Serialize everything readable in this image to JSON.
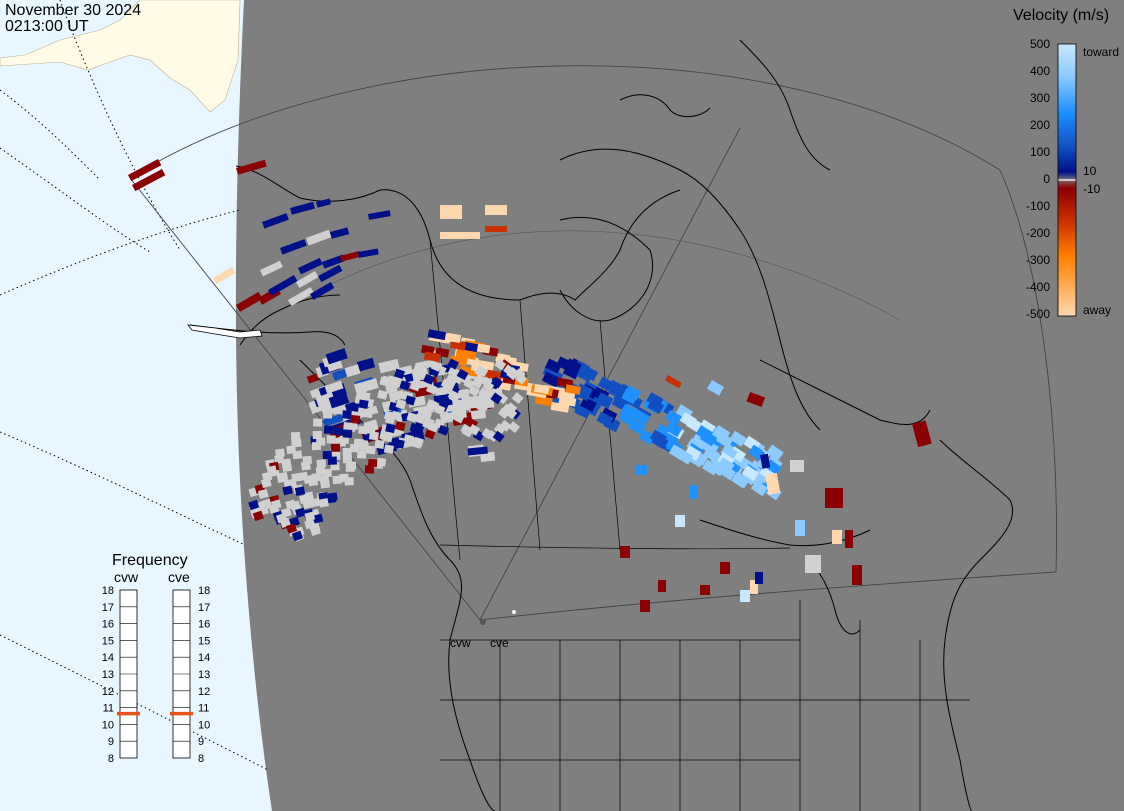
{
  "header": {
    "date": "November 30 2024",
    "time": "0213:00 UT"
  },
  "legend": {
    "title": "Velocity (m/s)",
    "ticks": [
      "500",
      "400",
      "300",
      "200",
      "100",
      "10",
      "0",
      "-10",
      "-100",
      "-200",
      "-300",
      "-400",
      "-500"
    ],
    "toward_label": "toward",
    "away_label": "away",
    "colors": {
      "toward_light": "#c8e8ff",
      "toward_mid": "#1e90ff",
      "toward_dark": "#00108a",
      "near_zero": "#ffffff",
      "away_dark": "#8b0000",
      "away_mid": "#ff8000",
      "away_light": "#ffd8b0"
    }
  },
  "frequency_panel": {
    "title": "Frequency",
    "radars": [
      {
        "name": "cvw",
        "selected": "11"
      },
      {
        "name": "cve",
        "selected": "11"
      }
    ],
    "scale": [
      "18",
      "17",
      "16",
      "15",
      "14",
      "13",
      "12",
      "11",
      "10",
      "9",
      "8"
    ]
  },
  "stations": [
    {
      "name": "cvw"
    },
    {
      "name": "cve"
    }
  ],
  "map_colors": {
    "ocean": "#e8f6ff",
    "land_outside": "#fffbe6",
    "coverage_area": "#7f7f7f",
    "coastline": "#000000",
    "ground_scatter": "#d0d0d0",
    "frequency_marker": "#e85020"
  }
}
